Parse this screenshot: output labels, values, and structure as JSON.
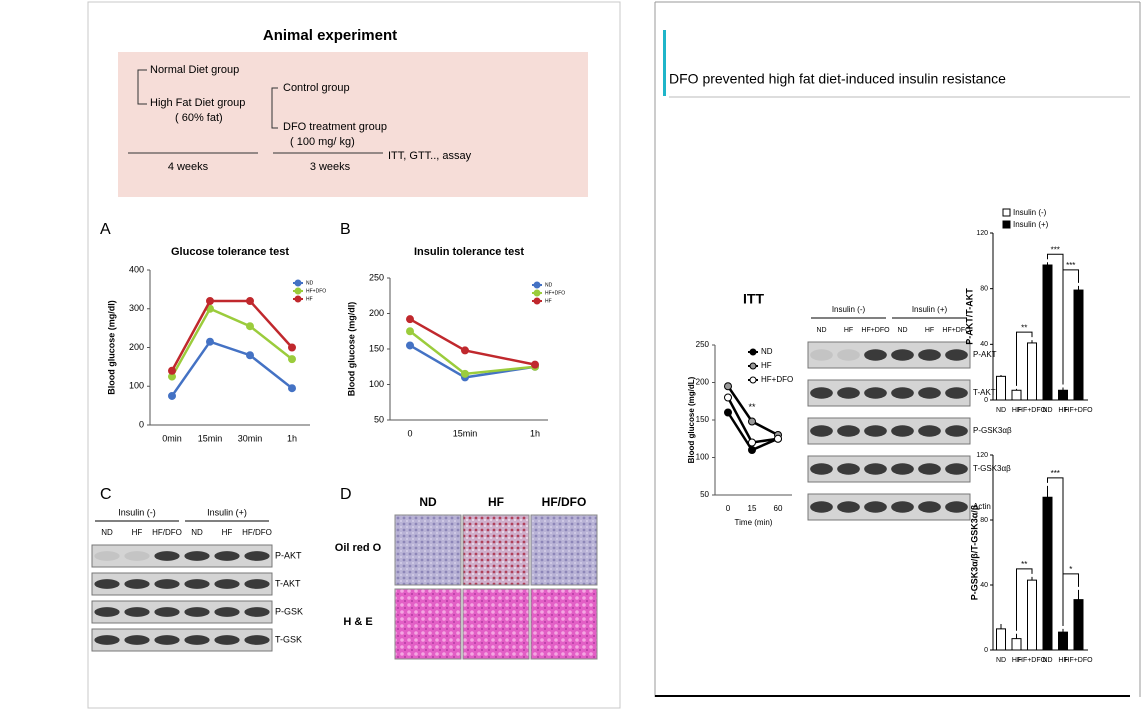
{
  "left": {
    "experiment": {
      "title": "Animal experiment",
      "normal": "Normal Diet group",
      "high_fat": "High Fat Diet group",
      "fat": "( 60% fat)",
      "control": "Control group",
      "dfo": "DFO treatment group",
      "dose": "( 100 mg/ kg)",
      "assay": "ITT, GTT.., assay",
      "period1": "4 weeks",
      "period2": "3 weeks"
    },
    "panel_labels": [
      "A",
      "B",
      "C",
      "D"
    ],
    "gtt": {
      "type": "line",
      "title": "Glucose tolerance test",
      "y_label": "Blood glucose (mg/dl)",
      "categories": [
        "0min",
        "15min",
        "30min",
        "1h"
      ],
      "series": [
        {
          "name": "ND",
          "color": "#4472c4",
          "values": [
            75,
            215,
            180,
            95
          ]
        },
        {
          "name": "HF+DFO",
          "color": "#9bcc3c",
          "values": [
            125,
            300,
            255,
            170
          ]
        },
        {
          "name": "HF",
          "color": "#c0282d",
          "values": [
            140,
            320,
            320,
            200
          ]
        }
      ],
      "ylim": [
        0,
        400
      ],
      "yticks": [
        0,
        100,
        200,
        300,
        400
      ]
    },
    "itt": {
      "type": "line",
      "title": "Insulin tolerance test",
      "y_label": "Blood glucose (mg/dl)",
      "categories": [
        "0",
        "15min",
        "1h"
      ],
      "series": [
        {
          "name": "ND",
          "color": "#4472c4",
          "values": [
            155,
            110,
            125
          ]
        },
        {
          "name": "HF+DFO",
          "color": "#9bcc3c",
          "values": [
            175,
            115,
            125
          ]
        },
        {
          "name": "HF",
          "color": "#c0282d",
          "values": [
            192,
            148,
            128
          ]
        }
      ],
      "ylim": [
        50,
        250
      ],
      "yticks": [
        50,
        100,
        150,
        200,
        250
      ]
    },
    "blot": {
      "groups": [
        "Insulin (-)",
        "Insulin (+)"
      ],
      "lanes": [
        "ND",
        "HF",
        "HF/DFO",
        "ND",
        "HF",
        "HF/DFO"
      ],
      "rows": [
        "P-AKT",
        "T-AKT",
        "P-GSK",
        "T-GSK"
      ]
    },
    "histology": {
      "columns": [
        "ND",
        "HF",
        "HF/DFO"
      ],
      "rows": [
        "Oil red O",
        "H & E"
      ]
    }
  },
  "right": {
    "title": "DFO prevented high fat diet-induced insulin resistance",
    "itt": {
      "type": "line",
      "title": "ITT",
      "y_label": "Blood glucose (mg/dL)",
      "x_label": "Time (min)",
      "categories": [
        "0",
        "15",
        "60"
      ],
      "series": [
        {
          "name": "ND",
          "color": "#000000",
          "values": [
            160,
            110,
            125
          ]
        },
        {
          "name": "HF",
          "color": "#999999",
          "values": [
            195,
            148,
            130
          ]
        },
        {
          "name": "HF+DFO",
          "color": "#ffffff",
          "values": [
            180,
            120,
            125
          ]
        }
      ],
      "ylim": [
        50,
        250
      ],
      "yticks": [
        50,
        100,
        150,
        200,
        250
      ],
      "annotation": "**"
    },
    "blot": {
      "groups": [
        "Insulin (-)",
        "Insulin (+)"
      ],
      "lanes": [
        "ND",
        "HF",
        "HF+DFO",
        "ND",
        "HF",
        "HF+DFO"
      ],
      "rows": [
        "P-AKT",
        "T-AKT",
        "P-GSK3αβ",
        "T-GSK3αβ",
        "Actin"
      ]
    },
    "akt": {
      "type": "bar",
      "y_label": "P-AKT/T-AKT",
      "categories": [
        "ND",
        "HF",
        "HF+DFO"
      ],
      "series": [
        {
          "name": "Insulin (-)",
          "color": "#ffffff",
          "values": [
            17,
            7,
            41
          ],
          "errors": [
            1,
            1,
            2
          ]
        },
        {
          "name": "Insulin (+)",
          "color": "#000000",
          "values": [
            97,
            7,
            79
          ],
          "errors": [
            2,
            2,
            3
          ]
        }
      ],
      "ylim": [
        0,
        120
      ],
      "yticks": [
        0,
        40,
        80,
        120
      ],
      "significance": [
        "**",
        "***",
        "***"
      ]
    },
    "gsk": {
      "type": "bar",
      "y_label": "P-GSK3α/β/T-GSK3α/β",
      "categories": [
        "ND",
        "HF",
        "HF+DFO"
      ],
      "series": [
        {
          "color": "#ffffff",
          "values": [
            13,
            7,
            43
          ],
          "errors": [
            3,
            3,
            2
          ]
        },
        {
          "color": "#000000",
          "values": [
            94,
            11,
            31
          ],
          "errors": [
            7,
            2,
            6
          ]
        }
      ],
      "ylim": [
        0,
        120
      ],
      "yticks": [
        0,
        40,
        80,
        120
      ],
      "significance": [
        "**",
        "***",
        "*"
      ]
    }
  }
}
